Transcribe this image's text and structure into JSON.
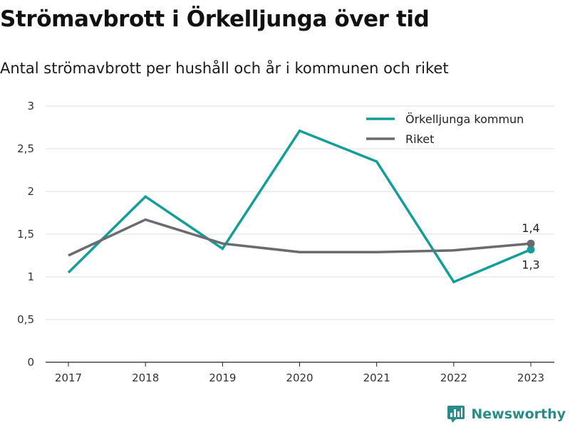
{
  "title": "Strömavbrott i Örkelljunga över tid",
  "subtitle": "Antal strömavbrott per hushåll och år i kommunen och riket",
  "brand": {
    "name": "Newsworthy",
    "icon": "newsworthy-logo-icon"
  },
  "colors": {
    "series_1": "#139e97",
    "series_2": "#6b6a70",
    "grid": "#dedede",
    "axis": "#222222",
    "brand": "#2a8c8a"
  },
  "chart_data": {
    "type": "line",
    "title": "Strömavbrott i Örkelljunga över tid",
    "subtitle": "Antal strömavbrott per hushåll och år i kommunen och riket",
    "x": [
      "2017",
      "2018",
      "2019",
      "2020",
      "2021",
      "2022",
      "2023"
    ],
    "ylim": [
      0,
      3
    ],
    "yticks": [
      0,
      0.5,
      1,
      1.5,
      2,
      2.5,
      3
    ],
    "ytick_labels": [
      "0",
      "0,5",
      "1",
      "1,5",
      "2",
      "2,5",
      "3"
    ],
    "grid": true,
    "legend": "top-right",
    "series": [
      {
        "name": "Örkelljunga kommun",
        "color": "#139e97",
        "values": [
          1.05,
          1.94,
          1.33,
          2.71,
          2.35,
          0.94,
          1.32
        ],
        "end_label": "1,3"
      },
      {
        "name": "Riket",
        "color": "#6b6a70",
        "values": [
          1.25,
          1.67,
          1.39,
          1.29,
          1.29,
          1.31,
          1.39
        ],
        "end_label": "1,4"
      }
    ]
  }
}
